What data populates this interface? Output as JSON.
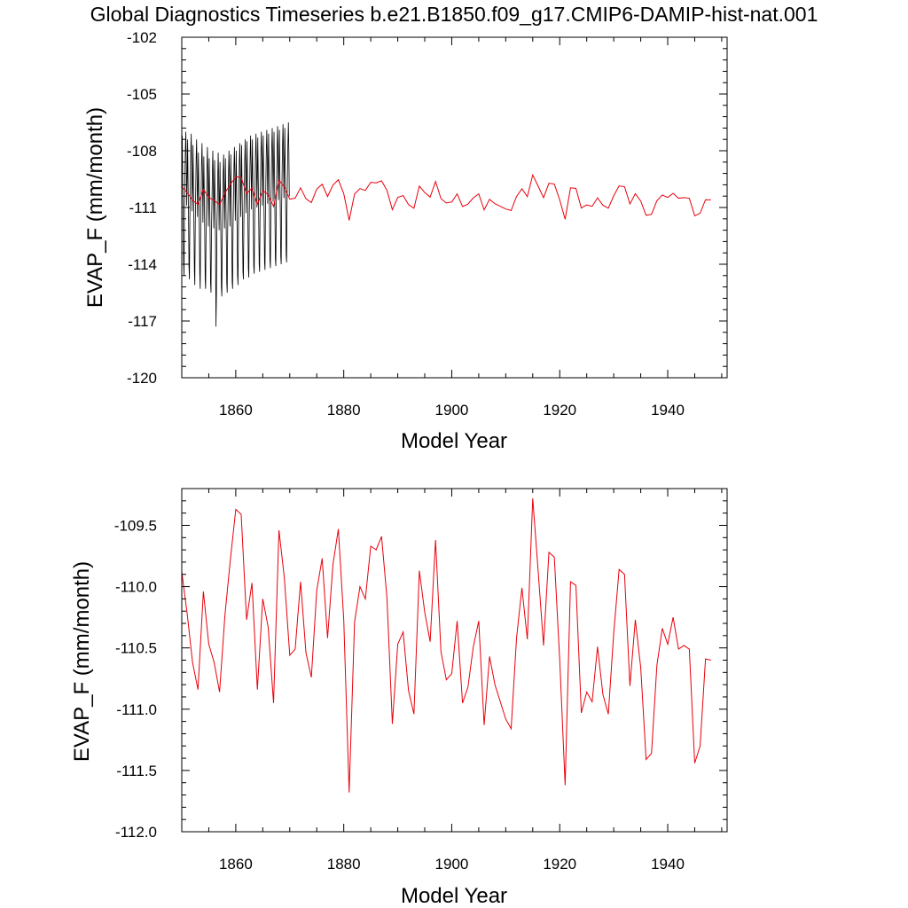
{
  "chart_data": [
    {
      "type": "line",
      "title": "Global Diagnostics Timeseries b.e21.B1850.f09_g17.CMIP6-DAMIP-hist-nat.001",
      "xlabel": "Model Year",
      "ylabel": "EVAP_F (mm/month)",
      "xlim": [
        1850,
        1951
      ],
      "ylim": [
        -120,
        -102
      ],
      "xticks": [
        1860,
        1880,
        1900,
        1920,
        1940
      ],
      "xtick_labels": [
        "1860",
        "1880",
        "1900",
        "1920",
        "1940"
      ],
      "yticks": [
        -120,
        -117,
        -114,
        -111,
        -108,
        -105,
        -102
      ],
      "ytick_labels": [
        "-120",
        "-117",
        "-114",
        "-111",
        "-108",
        "-105",
        "-102"
      ],
      "colors": {
        "monthly": "#000000",
        "annual": "#e8000b"
      },
      "series": [
        {
          "kind": "monthly",
          "start_year": 1850,
          "step": 0.08333,
          "values": [
            -109.1,
            -107.2,
            -109.3,
            -111.2,
            -113.8,
            -114.6,
            -111.1,
            -109.5,
            -107.9,
            -107.0,
            -108.5,
            -110.9,
            -109.4,
            -107.4,
            -109.7,
            -111.5,
            -114.1,
            -114.8,
            -111.5,
            -109.8,
            -108.1,
            -107.1,
            -108.8,
            -111.2,
            -109.8,
            -107.7,
            -110.0,
            -111.8,
            -114.3,
            -115.1,
            -111.8,
            -110.1,
            -108.3,
            -107.4,
            -109.1,
            -111.5,
            -110.0,
            -108.1,
            -110.3,
            -112.1,
            -114.5,
            -115.3,
            -112.0,
            -110.3,
            -108.6,
            -107.6,
            -109.2,
            -111.8,
            -110.1,
            -108.3,
            -110.4,
            -112.3,
            -114.8,
            -115.3,
            -112.2,
            -110.6,
            -108.9,
            -107.8,
            -109.3,
            -112.0,
            -110.2,
            -108.4,
            -110.5,
            -112.5,
            -115.0,
            -115.5,
            -112.3,
            -110.8,
            -109.2,
            -108.0,
            -109.5,
            -112.1,
            -110.3,
            -108.5,
            -110.6,
            -112.7,
            -117.3,
            -115.6,
            -112.4,
            -110.9,
            -109.3,
            -108.1,
            -109.6,
            -112.2,
            -110.4,
            -108.6,
            -110.7,
            -112.8,
            -115.2,
            -115.7,
            -112.5,
            -110.8,
            -109.2,
            -108.2,
            -109.7,
            -112.1,
            -110.2,
            -108.4,
            -110.5,
            -112.6,
            -115.0,
            -115.5,
            -112.3,
            -110.6,
            -109.0,
            -108.0,
            -109.5,
            -112.0,
            -110.0,
            -108.2,
            -110.3,
            -112.4,
            -114.9,
            -115.3,
            -112.1,
            -110.4,
            -108.8,
            -107.8,
            -109.3,
            -111.7,
            -109.8,
            -108.0,
            -110.1,
            -112.2,
            -114.6,
            -115.1,
            -111.9,
            -110.2,
            -108.6,
            -107.6,
            -109.1,
            -111.5,
            -109.6,
            -107.7,
            -109.9,
            -112.0,
            -114.4,
            -114.8,
            -111.7,
            -110.0,
            -108.4,
            -107.4,
            -108.9,
            -111.3,
            -109.4,
            -107.5,
            -109.7,
            -111.8,
            -114.2,
            -114.7,
            -111.5,
            -109.8,
            -108.2,
            -107.2,
            -108.7,
            -111.1,
            -109.3,
            -107.4,
            -109.6,
            -111.7,
            -114.1,
            -114.5,
            -111.4,
            -109.7,
            -108.1,
            -107.1,
            -108.6,
            -111.0,
            -109.2,
            -107.3,
            -109.5,
            -111.6,
            -114.0,
            -114.4,
            -111.3,
            -109.6,
            -108.0,
            -107.0,
            -108.5,
            -110.9,
            -109.0,
            -107.2,
            -109.4,
            -111.5,
            -113.9,
            -114.3,
            -111.2,
            -109.5,
            -107.9,
            -106.9,
            -108.4,
            -110.8,
            -108.9,
            -107.1,
            -109.3,
            -111.4,
            -113.8,
            -114.2,
            -111.1,
            -109.4,
            -107.8,
            -106.8,
            -108.3,
            -110.7,
            -108.8,
            -107.0,
            -109.2,
            -111.3,
            -113.7,
            -114.1,
            -111.0,
            -109.3,
            -107.7,
            -106.7,
            -108.2,
            -110.6,
            -108.7,
            -106.9,
            -109.1,
            -111.2,
            -113.6,
            -114.0,
            -110.9,
            -109.2,
            -107.6,
            -106.6,
            -108.1,
            -110.5,
            -108.6,
            -106.8,
            -109.0,
            -111.1,
            -113.5,
            -113.9,
            -110.8,
            -109.1,
            -107.5,
            -106.5,
            -108.0,
            -110.4
          ]
        },
        {
          "kind": "annual",
          "start_year": 1850,
          "step": 1,
          "values": [
            -109.88,
            -110.22,
            -110.62,
            -110.84,
            -110.04,
            -110.47,
            -110.62,
            -110.86,
            -110.23,
            -109.78,
            -109.37,
            -109.41,
            -110.27,
            -109.97,
            -110.84,
            -110.1,
            -110.33,
            -110.95,
            -109.54,
            -109.93,
            -110.56,
            -110.51,
            -109.96,
            -110.54,
            -110.74,
            -110.03,
            -109.77,
            -110.42,
            -109.82,
            -109.53,
            -110.27,
            -111.68,
            -110.29,
            -110.0,
            -110.1,
            -109.67,
            -109.7,
            -109.59,
            -110.09,
            -111.12,
            -110.47,
            -110.37,
            -110.85,
            -111.04,
            -109.87,
            -110.21,
            -110.45,
            -109.62,
            -110.53,
            -110.76,
            -110.71,
            -110.28,
            -110.95,
            -110.82,
            -110.49,
            -110.28,
            -111.13,
            -110.57,
            -110.8,
            -110.94,
            -111.08,
            -111.16,
            -110.42,
            -110.01,
            -110.43,
            -109.28,
            -109.87,
            -110.48,
            -109.72,
            -109.76,
            -110.6,
            -111.62,
            -109.96,
            -109.99,
            -111.03,
            -110.86,
            -110.94,
            -110.49,
            -110.88,
            -111.04,
            -110.38,
            -109.86,
            -109.9,
            -110.81,
            -110.27,
            -110.66,
            -111.41,
            -111.36,
            -110.64,
            -110.34,
            -110.47,
            -110.25,
            -110.51,
            -110.48,
            -110.51,
            -111.44,
            -111.3,
            -110.59,
            -110.6
          ]
        }
      ]
    },
    {
      "type": "line",
      "title": "",
      "xlabel": "Model Year",
      "ylabel": "EVAP_F (mm/month)",
      "xlim": [
        1850,
        1951
      ],
      "ylim": [
        -112.0,
        -109.2
      ],
      "xticks": [
        1860,
        1880,
        1900,
        1920,
        1940
      ],
      "xtick_labels": [
        "1860",
        "1880",
        "1900",
        "1920",
        "1940"
      ],
      "yticks": [
        -112.0,
        -111.5,
        -111.0,
        -110.5,
        -110.0,
        -109.5
      ],
      "ytick_labels": [
        "-112.0",
        "-111.5",
        "-111.0",
        "-110.5",
        "-110.0",
        "-109.5"
      ],
      "colors": {
        "annual": "#e8000b"
      },
      "series": [
        {
          "kind": "annual",
          "start_year": 1850,
          "step": 1,
          "values": [
            -109.88,
            -110.22,
            -110.62,
            -110.84,
            -110.04,
            -110.47,
            -110.62,
            -110.86,
            -110.23,
            -109.78,
            -109.37,
            -109.41,
            -110.27,
            -109.97,
            -110.84,
            -110.1,
            -110.33,
            -110.95,
            -109.54,
            -109.93,
            -110.56,
            -110.51,
            -109.96,
            -110.54,
            -110.74,
            -110.03,
            -109.77,
            -110.42,
            -109.82,
            -109.53,
            -110.27,
            -111.68,
            -110.29,
            -110.0,
            -110.1,
            -109.67,
            -109.7,
            -109.59,
            -110.09,
            -111.12,
            -110.47,
            -110.37,
            -110.85,
            -111.04,
            -109.87,
            -110.21,
            -110.45,
            -109.62,
            -110.53,
            -110.76,
            -110.71,
            -110.28,
            -110.95,
            -110.82,
            -110.49,
            -110.28,
            -111.13,
            -110.57,
            -110.8,
            -110.94,
            -111.08,
            -111.16,
            -110.42,
            -110.01,
            -110.43,
            -109.28,
            -109.87,
            -110.48,
            -109.72,
            -109.76,
            -110.6,
            -111.62,
            -109.96,
            -109.99,
            -111.03,
            -110.86,
            -110.94,
            -110.49,
            -110.88,
            -111.04,
            -110.38,
            -109.86,
            -109.9,
            -110.81,
            -110.27,
            -110.66,
            -111.41,
            -111.36,
            -110.64,
            -110.34,
            -110.47,
            -110.25,
            -110.51,
            -110.48,
            -110.51,
            -111.44,
            -111.3,
            -110.59,
            -110.6
          ]
        }
      ]
    }
  ]
}
